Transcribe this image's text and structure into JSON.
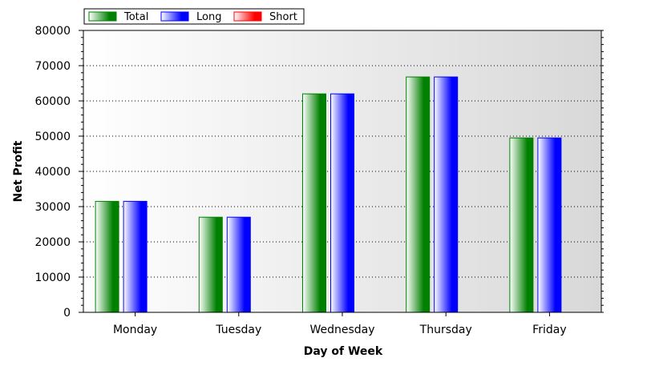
{
  "chart_data": {
    "type": "bar",
    "xlabel": "Day of Week",
    "ylabel": "Net Profit",
    "categories": [
      "Monday",
      "Tuesday",
      "Wednesday",
      "Thursday",
      "Friday"
    ],
    "series": [
      {
        "name": "Total",
        "values": [
          31500,
          27000,
          62000,
          66800,
          49500
        ]
      },
      {
        "name": "Long",
        "values": [
          31500,
          27000,
          62000,
          66800,
          49500
        ]
      },
      {
        "name": "Short",
        "values": [
          0,
          0,
          0,
          0,
          0
        ]
      }
    ],
    "ylim": [
      0,
      80000
    ],
    "yticks": [
      0,
      10000,
      20000,
      30000,
      40000,
      50000,
      60000,
      70000,
      80000
    ],
    "ytick_labels": [
      "0",
      "10000",
      "20000",
      "30000",
      "40000",
      "50000",
      "60000",
      "70000",
      "80000"
    ],
    "grid": true,
    "legend_position": "top-left",
    "colors": {
      "Total": "#008000",
      "Long": "#0000ff",
      "Short": "#ff0000"
    }
  }
}
